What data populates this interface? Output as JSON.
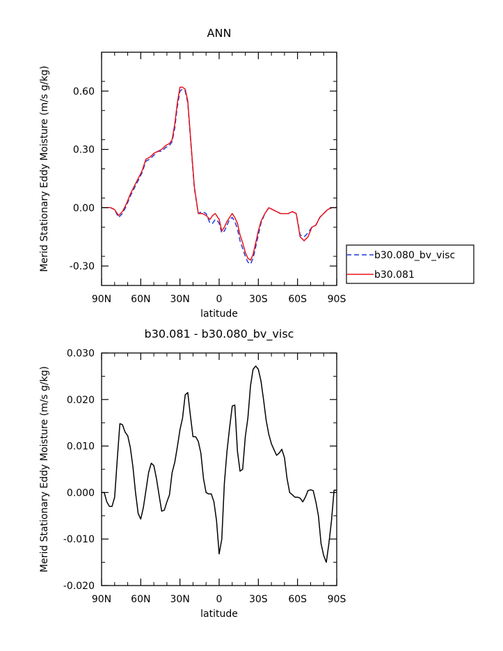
{
  "chart_data": [
    {
      "type": "line",
      "title": "ANN",
      "xlabel": "latitude",
      "ylabel": "Merid Stationary Eddy Moisture (m/s g/kg)",
      "xlim": [
        90,
        -90
      ],
      "ylim": [
        -0.4,
        0.8
      ],
      "x_ticks": [
        90,
        60,
        30,
        0,
        -30,
        -60,
        -90
      ],
      "x_tick_labels": [
        "90N",
        "60N",
        "30N",
        "0",
        "30S",
        "60S",
        "90S"
      ],
      "y_ticks": [
        -0.3,
        0.0,
        0.3,
        0.6
      ],
      "y_tick_labels": [
        "-0.30",
        "0.00",
        "0.30",
        "0.60"
      ],
      "legend_position": "right",
      "series": [
        {
          "name": "b30.080_bv_visc",
          "color": "#1f3ad8",
          "dash": "dashed",
          "x": [
            90,
            87,
            83,
            80,
            77,
            74,
            71,
            68,
            65,
            62,
            59,
            56,
            53,
            50,
            47,
            44,
            41,
            38,
            36,
            34,
            32,
            30,
            28,
            26,
            24,
            22,
            19,
            16,
            13,
            10,
            7,
            5,
            3,
            1,
            0,
            -2,
            -4,
            -6,
            -8,
            -10,
            -12,
            -14,
            -16,
            -18,
            -20,
            -22,
            -24,
            -26,
            -28,
            -30,
            -32,
            -35,
            -38,
            -41,
            -44,
            -47,
            -50,
            -53,
            -56,
            -59,
            -62,
            -65,
            -68,
            -71,
            -74,
            -77,
            -80,
            -83,
            -86,
            -90
          ],
          "y": [
            0.0,
            0.0,
            0.0,
            -0.01,
            -0.05,
            -0.03,
            0.01,
            0.06,
            0.1,
            0.14,
            0.18,
            0.24,
            0.25,
            0.27,
            0.29,
            0.29,
            0.31,
            0.32,
            0.34,
            0.41,
            0.52,
            0.6,
            0.61,
            0.6,
            0.54,
            0.36,
            0.1,
            -0.03,
            -0.02,
            -0.03,
            -0.08,
            -0.08,
            -0.06,
            -0.07,
            -0.08,
            -0.13,
            -0.12,
            -0.09,
            -0.06,
            -0.05,
            -0.07,
            -0.11,
            -0.17,
            -0.21,
            -0.25,
            -0.28,
            -0.29,
            -0.26,
            -0.2,
            -0.14,
            -0.08,
            -0.03,
            0.0,
            -0.01,
            -0.02,
            -0.03,
            -0.03,
            -0.03,
            -0.02,
            -0.03,
            -0.14,
            -0.15,
            -0.13,
            -0.1,
            -0.09,
            -0.05,
            -0.03,
            -0.01,
            0.0,
            0.0
          ]
        },
        {
          "name": "b30.081",
          "color": "#e8141c",
          "dash": "solid",
          "x": [
            90,
            87,
            83,
            80,
            77,
            74,
            71,
            68,
            65,
            62,
            59,
            56,
            53,
            50,
            47,
            44,
            41,
            38,
            36,
            34,
            32,
            30,
            28,
            26,
            24,
            22,
            19,
            16,
            13,
            10,
            7,
            5,
            3,
            1,
            0,
            -2,
            -4,
            -6,
            -8,
            -10,
            -12,
            -14,
            -16,
            -18,
            -20,
            -22,
            -24,
            -26,
            -28,
            -30,
            -32,
            -35,
            -38,
            -41,
            -44,
            -47,
            -50,
            -53,
            -56,
            -59,
            -62,
            -65,
            -68,
            -71,
            -74,
            -77,
            -80,
            -83,
            -86,
            -90
          ],
          "y": [
            0.0,
            0.0,
            0.0,
            -0.01,
            -0.04,
            -0.02,
            0.02,
            0.07,
            0.11,
            0.15,
            0.19,
            0.25,
            0.26,
            0.28,
            0.29,
            0.3,
            0.32,
            0.33,
            0.35,
            0.43,
            0.54,
            0.62,
            0.62,
            0.61,
            0.55,
            0.37,
            0.11,
            -0.03,
            -0.03,
            -0.04,
            -0.06,
            -0.04,
            -0.03,
            -0.05,
            -0.06,
            -0.12,
            -0.1,
            -0.07,
            -0.05,
            -0.03,
            -0.05,
            -0.08,
            -0.14,
            -0.18,
            -0.23,
            -0.26,
            -0.27,
            -0.24,
            -0.18,
            -0.12,
            -0.07,
            -0.03,
            0.0,
            -0.01,
            -0.02,
            -0.03,
            -0.03,
            -0.03,
            -0.02,
            -0.03,
            -0.15,
            -0.17,
            -0.15,
            -0.1,
            -0.09,
            -0.05,
            -0.03,
            -0.01,
            0.0,
            0.0
          ]
        }
      ]
    },
    {
      "type": "line",
      "title": "b30.081 - b30.080_bv_visc",
      "xlabel": "latitude",
      "ylabel": "Merid Stationary Eddy Moisture (m/s g/kg)",
      "xlim": [
        90,
        -90
      ],
      "ylim": [
        -0.02,
        0.03
      ],
      "x_ticks": [
        90,
        60,
        30,
        0,
        -30,
        -60,
        -90
      ],
      "x_tick_labels": [
        "90N",
        "60N",
        "30N",
        "0",
        "30S",
        "60S",
        "90S"
      ],
      "y_ticks": [
        -0.02,
        -0.01,
        0.0,
        0.01,
        0.02,
        0.03
      ],
      "y_tick_labels": [
        "-0.020",
        "-0.010",
        "0.000",
        "0.010",
        "0.020",
        "0.030"
      ],
      "series": [
        {
          "color": "#000000",
          "dash": "solid",
          "x": [
            90,
            88,
            86,
            84,
            82,
            80,
            78,
            76,
            74,
            72,
            70,
            68,
            66,
            64,
            62,
            60,
            58,
            56,
            54,
            52,
            50,
            48,
            46,
            44,
            42,
            40,
            38,
            36,
            34,
            32,
            30,
            28,
            26,
            24,
            22,
            20,
            18,
            16,
            14,
            12,
            10,
            8,
            6,
            4,
            2,
            0,
            -2,
            -4,
            -6,
            -8,
            -10,
            -12,
            -14,
            -16,
            -18,
            -20,
            -22,
            -24,
            -26,
            -28,
            -30,
            -32,
            -34,
            -36,
            -38,
            -40,
            -42,
            -44,
            -46,
            -48,
            -50,
            -52,
            -54,
            -56,
            -58,
            -60,
            -62,
            -64,
            -66,
            -68,
            -70,
            -72,
            -74,
            -76,
            -78,
            -80,
            -82,
            -84,
            -86,
            -88,
            -90
          ],
          "y": [
            0.0,
            0.0,
            -0.002,
            -0.003,
            -0.003,
            -0.001,
            0.007,
            0.0148,
            0.0146,
            0.013,
            0.0122,
            0.0097,
            0.0055,
            0.0,
            -0.0045,
            -0.0057,
            -0.0032,
            0.0005,
            0.0043,
            0.0063,
            0.0058,
            0.003,
            -0.0005,
            -0.004,
            -0.0038,
            -0.002,
            -0.0005,
            0.0043,
            0.0065,
            0.0098,
            0.0135,
            0.016,
            0.021,
            0.0215,
            0.0165,
            0.012,
            0.012,
            0.011,
            0.0085,
            0.003,
            0.0,
            -0.0003,
            -0.0003,
            -0.002,
            -0.006,
            -0.0132,
            -0.01,
            0.002,
            0.0089,
            0.0139,
            0.0186,
            0.0188,
            0.0089,
            0.0046,
            0.005,
            0.012,
            0.016,
            0.023,
            0.0265,
            0.0272,
            0.0265,
            0.024,
            0.02,
            0.0155,
            0.0125,
            0.0105,
            0.0092,
            0.008,
            0.0085,
            0.0093,
            0.0075,
            0.003,
            0.0,
            -0.0005,
            -0.001,
            -0.001,
            -0.0012,
            -0.002,
            -0.001,
            0.0004,
            0.0006,
            0.0004,
            -0.002,
            -0.005,
            -0.011,
            -0.0135,
            -0.015,
            -0.011,
            -0.006,
            0.0005,
            0.0005
          ]
        }
      ]
    }
  ]
}
